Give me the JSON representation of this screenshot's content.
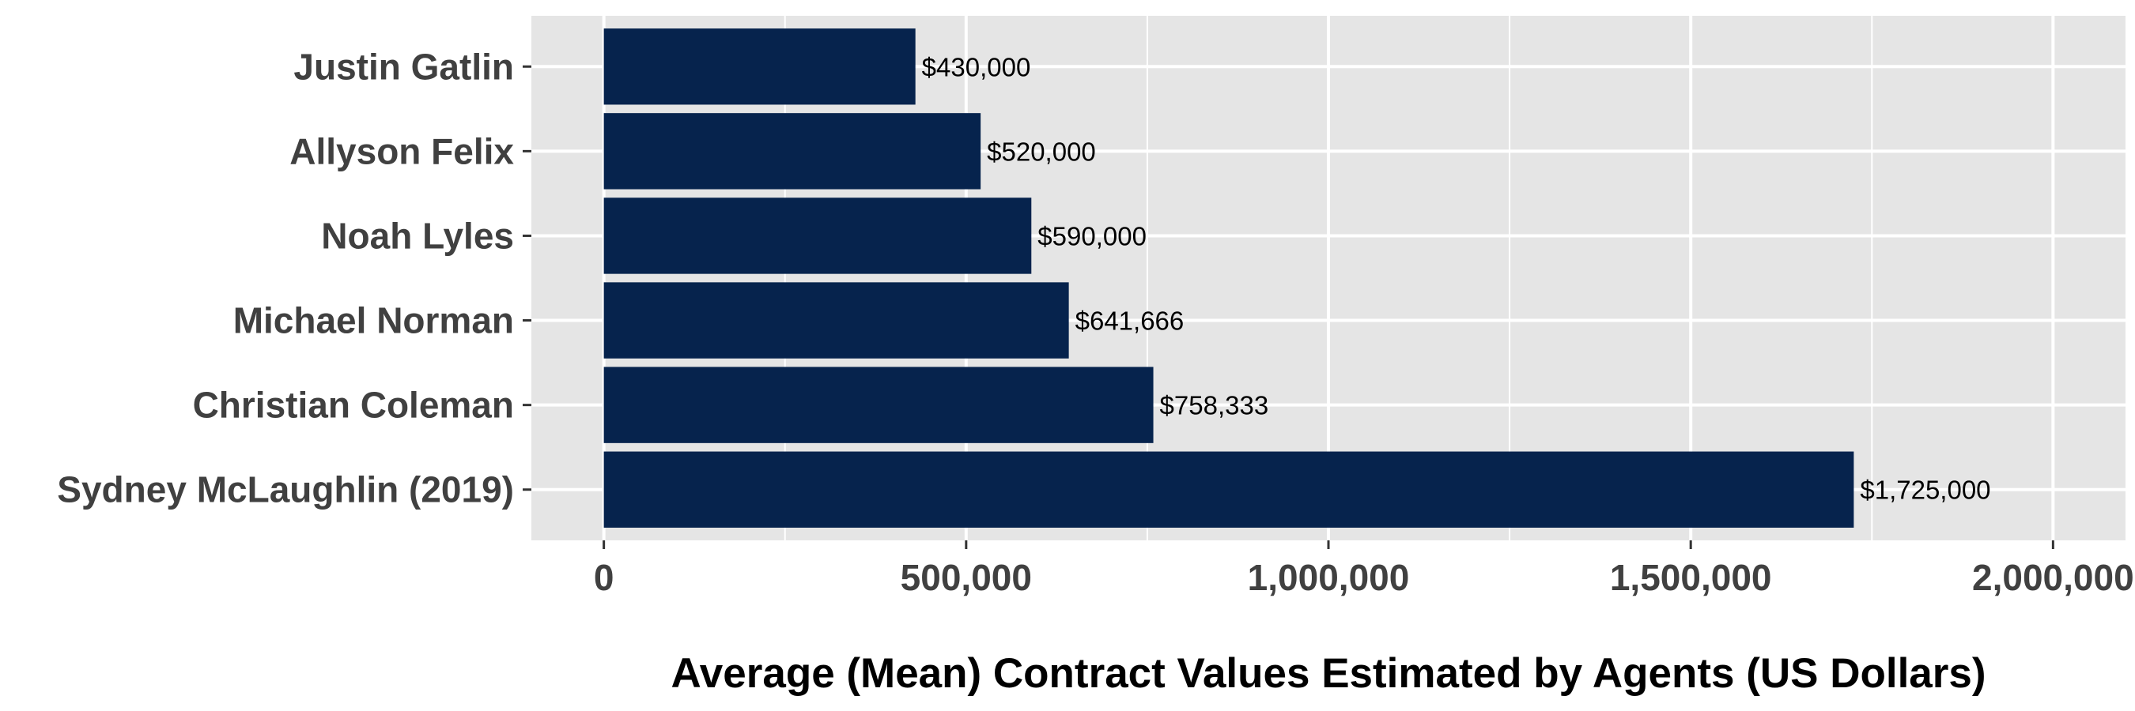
{
  "chart_data": {
    "type": "bar",
    "orientation": "horizontal",
    "categories": [
      "Sydney McLaughlin (2019)",
      "Christian Coleman",
      "Michael Norman",
      "Noah Lyles",
      "Allyson Felix",
      "Justin Gatlin"
    ],
    "values": [
      1725000,
      758333,
      641666,
      590000,
      520000,
      430000
    ],
    "data_labels": [
      "$1,725,000",
      "$758,333",
      "$641,666",
      "$590,000",
      "$520,000",
      "$430,000"
    ],
    "xlabel": "Average (Mean) Contract Values Estimated by Agents (US Dollars)",
    "ylabel": "",
    "xlim": [
      -100000,
      2100000
    ],
    "x_ticks": [
      0,
      500000,
      1000000,
      1500000,
      2000000
    ],
    "x_tick_labels": [
      "0",
      "500,000",
      "1,000,000",
      "1,500,000",
      "2,000,000"
    ],
    "grid": true,
    "legend": "none",
    "colors": {
      "bar": "#06234D",
      "panel_background": "#E5E5E5",
      "grid_line": "#FFFFFF",
      "tick_text": "#404040"
    }
  }
}
